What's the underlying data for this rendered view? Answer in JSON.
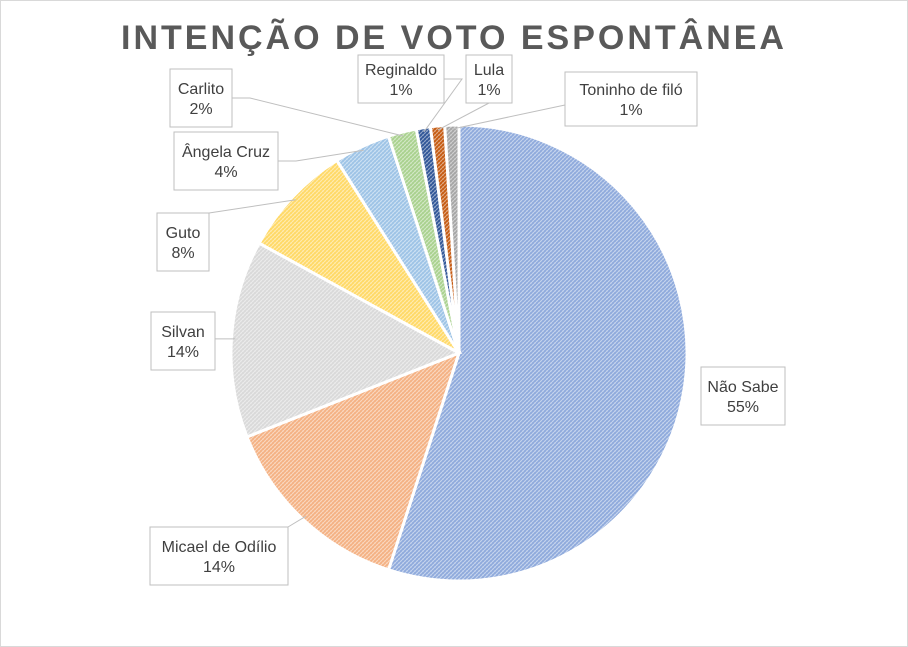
{
  "chart_data": {
    "type": "pie",
    "title": "INTENÇÃO DE VOTO ESPONTÂNEA",
    "slices": [
      {
        "name": "Não Sabe",
        "value": 55,
        "label": "55%",
        "color": "#8faadc"
      },
      {
        "name": "Micael de Odílio",
        "value": 14,
        "label": "14%",
        "color": "#f4b183"
      },
      {
        "name": "Silvan",
        "value": 14,
        "label": "14%",
        "color": "#d9d9d9"
      },
      {
        "name": "Guto",
        "value": 8,
        "label": "8%",
        "color": "#ffd966"
      },
      {
        "name": "Ângela Cruz",
        "value": 4,
        "label": "4%",
        "color": "#9dc3e6"
      },
      {
        "name": "Carlito",
        "value": 2,
        "label": "2%",
        "color": "#a9d18e"
      },
      {
        "name": "Reginaldo",
        "value": 1,
        "label": "1%",
        "color": "#2f5597"
      },
      {
        "name": "Lula",
        "value": 1,
        "label": "1%",
        "color": "#c55a11"
      },
      {
        "name": "Toninho de filó",
        "value": 1,
        "label": "1%",
        "color": "#a5a5a5"
      }
    ]
  }
}
